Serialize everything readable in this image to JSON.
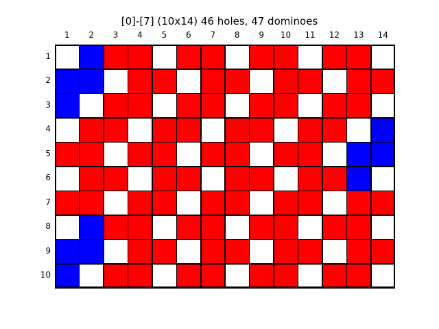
{
  "title": "[0]-[7]  (10x14) 46 holes, 47 dominoes",
  "colors": {
    "red": "#ff0000",
    "blue": "#0000ff",
    "white": "#ffffff"
  },
  "col_labels": [
    "1",
    "2",
    "3",
    "4",
    "5",
    "6",
    "7",
    "8",
    "9",
    "10",
    "11",
    "12",
    "13",
    "14"
  ],
  "row_labels": [
    "1",
    "2",
    "3",
    "4",
    "5",
    "6",
    "7",
    "8",
    "9",
    "10"
  ],
  "board": [
    "WBRRWRRWRRWRRW",
    "BBWRRWRRWRRWRR",
    "BWRRWRRWRRWRRW",
    "WRRWRRWRRWRRWB",
    "RRWRRWRRWRRWBB",
    "WRRWRRWRRWRRBW",
    "RRWRRWRRWRRWRR",
    "WBRRWRRWRRWRRW",
    "BBWRRWRRWRRWRR",
    "BWRRWRRWRRWRRW"
  ]
}
